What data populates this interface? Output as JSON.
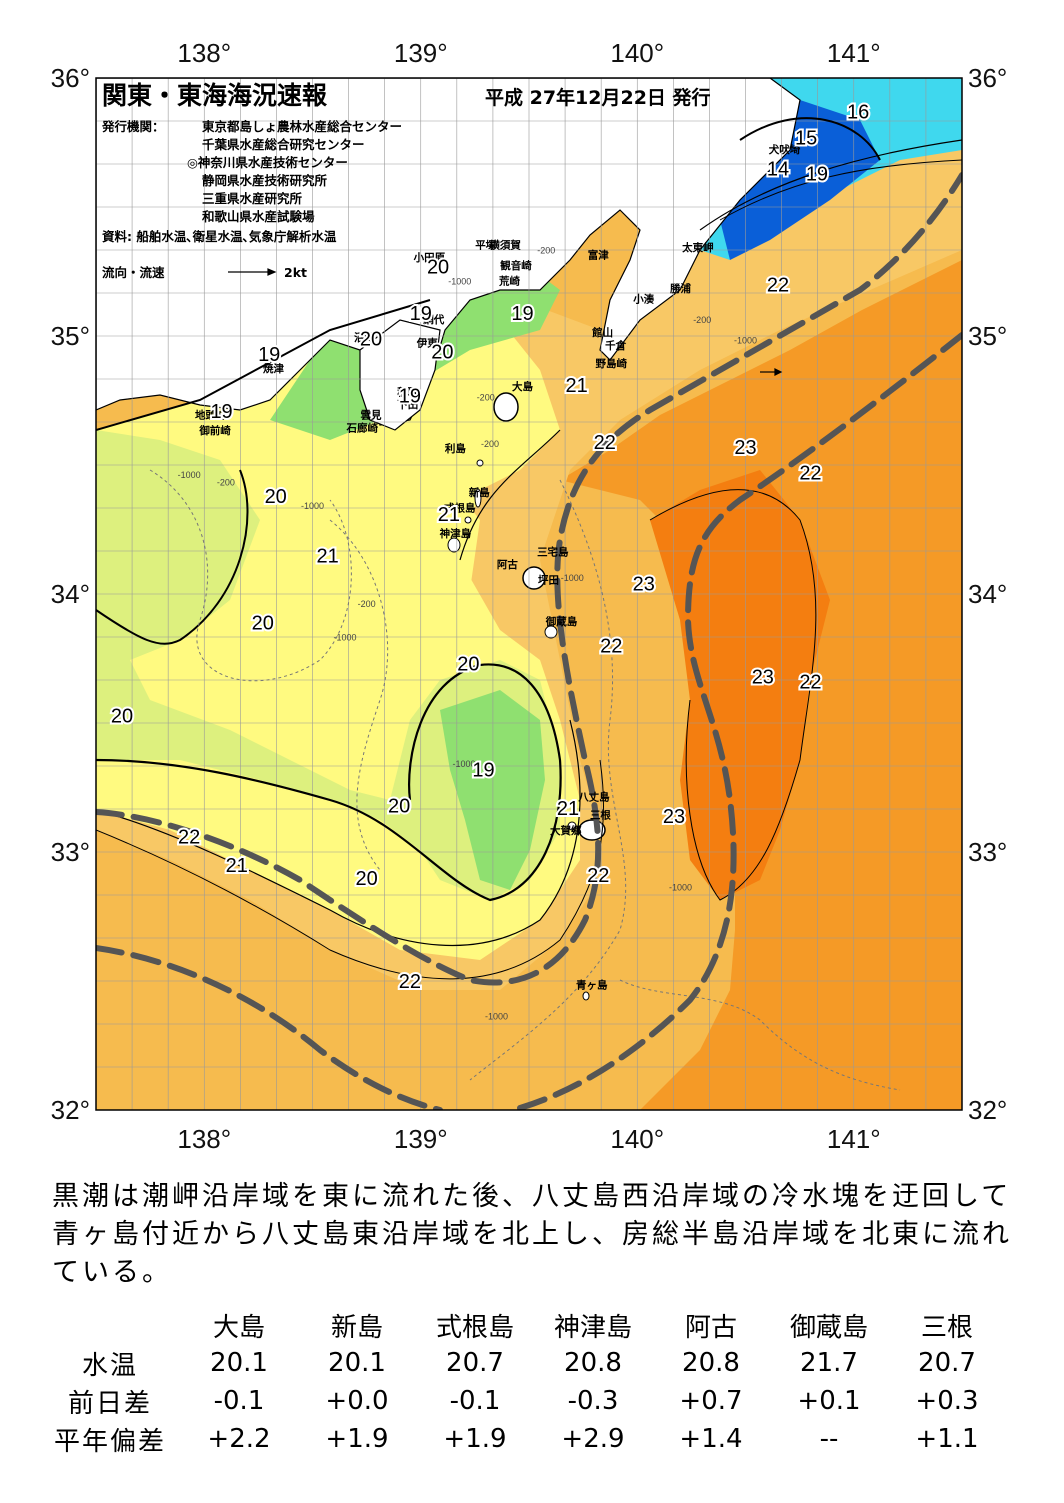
{
  "map": {
    "title": "関東・東海海況速報",
    "issue_date": "平成 27年12月22日 発行",
    "issuers_label": "発行機関：",
    "issuers": [
      "東京都島しょ農林水産総合センター",
      "千葉県水産総合研究センター",
      "◎神奈川県水産技術センター",
      "静岡県水産技術研究所",
      "三重県水産研究所",
      "和歌山県水産試験場"
    ],
    "source": "資料: 船舶水温､衛星水温､気象庁解析水温",
    "flow_label": "流向・流速",
    "flow_scale": "2kt",
    "lon_labels": [
      "138°",
      "139°",
      "140°",
      "141°"
    ],
    "lat_labels": [
      "36°",
      "35°",
      "34°",
      "33°",
      "32°"
    ],
    "lon_range": [
      137.5,
      141.5
    ],
    "lat_range": [
      32.0,
      36.0
    ],
    "colors": {
      "t14": "#0a5fd8",
      "t16": "#3fd8ee",
      "t19": "#8fe070",
      "t20": "#ddf07e",
      "t21": "#fffa80",
      "t22": "#f6bb4e",
      "t23": "#f59a26",
      "t24": "#f47e10",
      "land": "#ffffff",
      "kuroshio_axis": "#555555"
    },
    "places": [
      {
        "name": "犬吠埼",
        "lon": 140.68,
        "lat": 35.71
      },
      {
        "name": "太東岬",
        "lon": 140.28,
        "lat": 35.33
      },
      {
        "name": "勝浦",
        "lon": 140.2,
        "lat": 35.17
      },
      {
        "name": "小湊",
        "lon": 140.03,
        "lat": 35.13
      },
      {
        "name": "富津",
        "lon": 139.82,
        "lat": 35.3
      },
      {
        "name": "平塚",
        "lon": 139.3,
        "lat": 35.34
      },
      {
        "name": "横須賀",
        "lon": 139.39,
        "lat": 35.34
      },
      {
        "name": "観音崎",
        "lon": 139.44,
        "lat": 35.26
      },
      {
        "name": "荒崎",
        "lon": 139.41,
        "lat": 35.2
      },
      {
        "name": "小田原",
        "lon": 139.04,
        "lat": 35.29
      },
      {
        "name": "館山",
        "lon": 139.84,
        "lat": 35.0
      },
      {
        "name": "千倉",
        "lon": 139.9,
        "lat": 34.95
      },
      {
        "name": "野島崎",
        "lon": 139.88,
        "lat": 34.88
      },
      {
        "name": "網代",
        "lon": 139.06,
        "lat": 35.05
      },
      {
        "name": "伊東",
        "lon": 139.03,
        "lat": 34.96
      },
      {
        "name": "沼津",
        "lon": 138.74,
        "lat": 34.98
      },
      {
        "name": "焼津",
        "lon": 138.32,
        "lat": 34.86
      },
      {
        "name": "大島",
        "lon": 139.47,
        "lat": 34.79
      },
      {
        "name": "稲取",
        "lon": 138.94,
        "lat": 34.77
      },
      {
        "name": "下田",
        "lon": 138.94,
        "lat": 34.72
      },
      {
        "name": "雲見",
        "lon": 138.77,
        "lat": 34.68
      },
      {
        "name": "石廊崎",
        "lon": 138.73,
        "lat": 34.63
      },
      {
        "name": "地頭方",
        "lon": 138.03,
        "lat": 34.68
      },
      {
        "name": "御前崎",
        "lon": 138.05,
        "lat": 34.62
      },
      {
        "name": "利島",
        "lon": 139.16,
        "lat": 34.55
      },
      {
        "name": "新島",
        "lon": 139.27,
        "lat": 34.38
      },
      {
        "name": "式根島",
        "lon": 139.18,
        "lat": 34.32
      },
      {
        "name": "神津島",
        "lon": 139.16,
        "lat": 34.22
      },
      {
        "name": "三宅島",
        "lon": 139.61,
        "lat": 34.15
      },
      {
        "name": "阿古",
        "lon": 139.4,
        "lat": 34.1
      },
      {
        "name": "坪田",
        "lon": 139.59,
        "lat": 34.04
      },
      {
        "name": "御蔵島",
        "lon": 139.65,
        "lat": 33.88
      },
      {
        "name": "八丈島",
        "lon": 139.8,
        "lat": 33.2
      },
      {
        "name": "三根",
        "lon": 139.83,
        "lat": 33.13
      },
      {
        "name": "大賀郷",
        "lon": 139.67,
        "lat": 33.07
      },
      {
        "name": "青ヶ島",
        "lon": 139.79,
        "lat": 32.47
      }
    ],
    "isotherm_labels": [
      {
        "text": "16",
        "lon": 141.02,
        "lat": 35.87
      },
      {
        "text": "15",
        "lon": 140.78,
        "lat": 35.77
      },
      {
        "text": "14",
        "lon": 140.65,
        "lat": 35.65
      },
      {
        "text": "19",
        "lon": 140.83,
        "lat": 35.63
      },
      {
        "text": "22",
        "lon": 140.65,
        "lat": 35.2
      },
      {
        "text": "20",
        "lon": 139.08,
        "lat": 35.27
      },
      {
        "text": "19",
        "lon": 139.0,
        "lat": 35.09
      },
      {
        "text": "19",
        "lon": 139.47,
        "lat": 35.09
      },
      {
        "text": "20",
        "lon": 138.77,
        "lat": 34.99
      },
      {
        "text": "20",
        "lon": 139.1,
        "lat": 34.94
      },
      {
        "text": "19",
        "lon": 138.3,
        "lat": 34.93
      },
      {
        "text": "21",
        "lon": 139.72,
        "lat": 34.81
      },
      {
        "text": "19",
        "lon": 138.95,
        "lat": 34.77
      },
      {
        "text": "19",
        "lon": 138.08,
        "lat": 34.71
      },
      {
        "text": "22",
        "lon": 139.85,
        "lat": 34.59
      },
      {
        "text": "23",
        "lon": 140.5,
        "lat": 34.57
      },
      {
        "text": "22",
        "lon": 140.8,
        "lat": 34.47
      },
      {
        "text": "20",
        "lon": 138.33,
        "lat": 34.38
      },
      {
        "text": "21",
        "lon": 139.13,
        "lat": 34.31
      },
      {
        "text": "21",
        "lon": 138.57,
        "lat": 34.15
      },
      {
        "text": "23",
        "lon": 140.03,
        "lat": 34.04
      },
      {
        "text": "20",
        "lon": 138.27,
        "lat": 33.89
      },
      {
        "text": "22",
        "lon": 139.88,
        "lat": 33.8
      },
      {
        "text": "20",
        "lon": 139.22,
        "lat": 33.73
      },
      {
        "text": "23",
        "lon": 140.58,
        "lat": 33.68
      },
      {
        "text": "22",
        "lon": 140.8,
        "lat": 33.66
      },
      {
        "text": "20",
        "lon": 137.62,
        "lat": 33.53
      },
      {
        "text": "19",
        "lon": 139.29,
        "lat": 33.32
      },
      {
        "text": "20",
        "lon": 138.9,
        "lat": 33.18
      },
      {
        "text": "21",
        "lon": 139.68,
        "lat": 33.17
      },
      {
        "text": "23",
        "lon": 140.17,
        "lat": 33.14
      },
      {
        "text": "22",
        "lon": 137.93,
        "lat": 33.06
      },
      {
        "text": "21",
        "lon": 138.15,
        "lat": 32.95
      },
      {
        "text": "22",
        "lon": 139.82,
        "lat": 32.91
      },
      {
        "text": "20",
        "lon": 138.75,
        "lat": 32.9
      },
      {
        "text": "22",
        "lon": 138.95,
        "lat": 32.5
      }
    ],
    "depth_labels": [
      {
        "text": "-200",
        "lon": 139.58,
        "lat": 35.32
      },
      {
        "text": "-1000",
        "lon": 139.18,
        "lat": 35.2
      },
      {
        "text": "-200",
        "lon": 140.3,
        "lat": 35.05
      },
      {
        "text": "-1000",
        "lon": 140.5,
        "lat": 34.97
      },
      {
        "text": "-200",
        "lon": 139.3,
        "lat": 34.75
      },
      {
        "text": "-200",
        "lon": 139.32,
        "lat": 34.57
      },
      {
        "text": "-1000",
        "lon": 137.93,
        "lat": 34.45
      },
      {
        "text": "-200",
        "lon": 138.1,
        "lat": 34.42
      },
      {
        "text": "-1000",
        "lon": 138.5,
        "lat": 34.33
      },
      {
        "text": "-1000",
        "lon": 139.7,
        "lat": 34.05
      },
      {
        "text": "-200",
        "lon": 138.75,
        "lat": 33.95
      },
      {
        "text": "-1000",
        "lon": 138.65,
        "lat": 33.82
      },
      {
        "text": "-1000",
        "lon": 139.2,
        "lat": 33.33
      },
      {
        "text": "-1000",
        "lon": 140.2,
        "lat": 32.85
      },
      {
        "text": "-1000",
        "lon": 139.35,
        "lat": 32.35
      }
    ]
  },
  "summary": "黒潮は潮岬沿岸域を東に流れた後、八丈島西沿岸域の冷水塊を迂回して青ヶ島付近から八丈島東沿岸域を北上し、房総半島沿岸域を北東に流れている。",
  "table": {
    "columns": [
      "大島",
      "新島",
      "式根島",
      "神津島",
      "阿古",
      "御蔵島",
      "三根"
    ],
    "rows": [
      {
        "label": "水温",
        "values": [
          "20.1",
          "20.1",
          "20.7",
          "20.8",
          "20.8",
          "21.7",
          "20.7"
        ]
      },
      {
        "label": "前日差",
        "values": [
          "-0.1",
          "+0.0",
          "-0.1",
          "-0.3",
          "+0.7",
          "+0.1",
          "+0.3"
        ]
      },
      {
        "label": "平年偏差",
        "values": [
          "+2.2",
          "+1.9",
          "+1.9",
          "+2.9",
          "+1.4",
          "--",
          "+1.1"
        ]
      }
    ]
  }
}
